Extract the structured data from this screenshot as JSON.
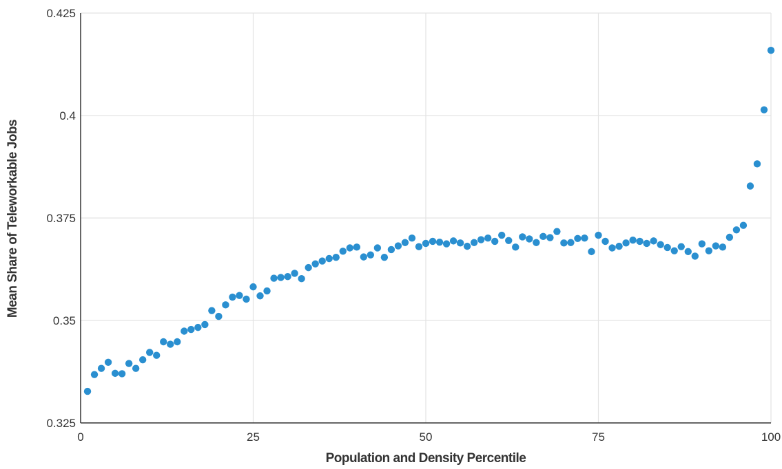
{
  "chart_data": {
    "type": "scatter",
    "title": "",
    "xlabel": "Population and Density Percentile",
    "ylabel": "Mean Share of Teleworkable Jobs",
    "xlim": [
      0,
      100
    ],
    "ylim": [
      0.325,
      0.425
    ],
    "x_ticks": [
      0,
      25,
      50,
      75,
      100
    ],
    "y_ticks": [
      0.325,
      0.35,
      0.375,
      0.4,
      0.425
    ],
    "x_tick_labels": [
      "0",
      "25",
      "50",
      "75",
      "100"
    ],
    "y_tick_labels": [
      "0.325",
      "0.35",
      "0.375",
      "0.4",
      "0.425"
    ],
    "grid": true,
    "colors": {
      "marker": "#2a8fd0",
      "grid": "#e3e3e3",
      "axis": "#333333"
    },
    "series": [
      {
        "x": [
          1,
          2,
          3,
          4,
          5,
          6,
          7,
          8,
          9,
          10,
          11,
          12,
          13,
          14,
          15,
          16,
          17,
          18,
          19,
          20,
          21,
          22,
          23,
          24,
          25,
          26,
          27,
          28,
          29,
          30,
          31,
          32,
          33,
          34,
          35,
          36,
          37,
          38,
          39,
          40,
          41,
          42,
          43,
          44,
          45,
          46,
          47,
          48,
          49,
          50,
          51,
          52,
          53,
          54,
          55,
          56,
          57,
          58,
          59,
          60,
          61,
          62,
          63,
          64,
          65,
          66,
          67,
          68,
          69,
          70,
          71,
          72,
          73,
          74,
          75,
          76,
          77,
          78,
          79,
          80,
          81,
          82,
          83,
          84,
          85,
          86,
          87,
          88,
          89,
          90,
          91,
          92,
          93,
          94,
          95,
          96,
          97,
          98,
          99,
          100
        ],
        "y": [
          0.3327,
          0.3368,
          0.3383,
          0.3398,
          0.3371,
          0.337,
          0.3395,
          0.3383,
          0.3404,
          0.3422,
          0.3415,
          0.3448,
          0.3442,
          0.3448,
          0.3474,
          0.3478,
          0.3483,
          0.349,
          0.3524,
          0.351,
          0.3538,
          0.3557,
          0.3561,
          0.3552,
          0.3582,
          0.356,
          0.3572,
          0.3603,
          0.3605,
          0.3607,
          0.3615,
          0.3602,
          0.3629,
          0.3638,
          0.3645,
          0.3651,
          0.3654,
          0.3669,
          0.3677,
          0.3679,
          0.3655,
          0.366,
          0.3677,
          0.3654,
          0.3673,
          0.3682,
          0.369,
          0.3701,
          0.368,
          0.3688,
          0.3693,
          0.3691,
          0.3687,
          0.3694,
          0.3689,
          0.3681,
          0.369,
          0.3697,
          0.3701,
          0.3693,
          0.3708,
          0.3695,
          0.3679,
          0.3704,
          0.3699,
          0.369,
          0.3705,
          0.3702,
          0.3717,
          0.3689,
          0.369,
          0.37,
          0.3701,
          0.3668,
          0.3708,
          0.3693,
          0.3677,
          0.3681,
          0.3689,
          0.3696,
          0.3693,
          0.3688,
          0.3694,
          0.3685,
          0.3678,
          0.367,
          0.368,
          0.3668,
          0.3657,
          0.3687,
          0.367,
          0.3682,
          0.3679,
          0.3703,
          0.3721,
          0.3732,
          0.3828,
          0.3882,
          0.4014,
          0.4159
        ]
      }
    ]
  }
}
